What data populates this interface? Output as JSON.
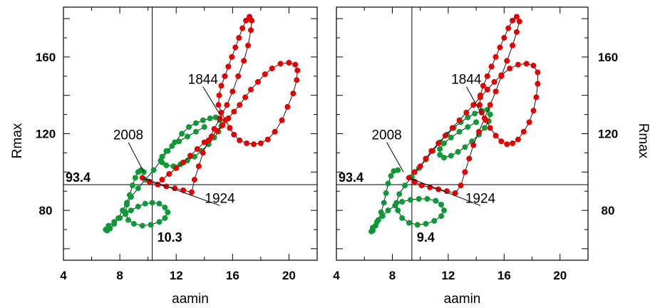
{
  "chart_data": [
    {
      "type": "scatter",
      "xlabel": "aamin",
      "ylabel": "Rmax",
      "xlim": [
        4,
        22
      ],
      "ylim": [
        54,
        186
      ],
      "xticks": [
        4,
        8,
        12,
        16,
        20
      ],
      "yticks": [
        80,
        120,
        160
      ],
      "yaxis_side": "left",
      "grid": false,
      "crosshair": {
        "x": 10.3,
        "y": 93.4
      },
      "labels": {
        "x_value": "10.3",
        "y_value": "93.4"
      },
      "annotations": [
        {
          "text": "1844",
          "at": [
            15.1,
            130
          ],
          "text_at": [
            13.9,
            146
          ]
        },
        {
          "text": "2008",
          "at": [
            9.7,
            100
          ],
          "text_at": [
            8.6,
            117
          ]
        },
        {
          "text": "1924",
          "at": [
            9.6,
            97
          ],
          "text_at": [
            15.1,
            84
          ]
        }
      ],
      "series": [
        {
          "color": "#0b9a35",
          "points": [
            [
              9.7,
              100
            ],
            [
              9.5,
              101
            ],
            [
              9.3,
              100
            ],
            [
              9.1,
              97
            ],
            [
              8.9,
              93
            ],
            [
              8.7,
              88
            ],
            [
              8.5,
              84
            ],
            [
              8.2,
              80
            ],
            [
              7.9,
              76
            ],
            [
              7.6,
              73
            ],
            [
              7.3,
              70.5
            ],
            [
              7.1,
              69.5
            ],
            [
              7.0,
              70
            ],
            [
              7.2,
              72
            ],
            [
              7.6,
              74
            ],
            [
              8.0,
              76
            ],
            [
              8.4,
              78
            ],
            [
              8.8,
              80
            ],
            [
              9.3,
              82
            ],
            [
              9.8,
              83.5
            ],
            [
              10.3,
              84
            ],
            [
              10.8,
              83.5
            ],
            [
              11.2,
              81.5
            ],
            [
              11.4,
              79
            ],
            [
              11.2,
              76
            ],
            [
              10.8,
              74
            ],
            [
              10.2,
              72.5
            ],
            [
              9.6,
              72
            ],
            [
              9.0,
              73
            ],
            [
              8.6,
              75
            ],
            [
              8.4,
              79
            ],
            [
              8.5,
              83
            ],
            [
              8.8,
              87
            ],
            [
              9.3,
              91.5
            ],
            [
              9.8,
              96
            ],
            [
              10.4,
              101
            ],
            [
              10.9,
              106
            ],
            [
              11.4,
              111
            ],
            [
              11.9,
              115.5
            ],
            [
              12.4,
              120
            ],
            [
              12.9,
              123.5
            ],
            [
              13.4,
              125.5
            ],
            [
              13.9,
              127
            ],
            [
              14.4,
              128
            ],
            [
              14.8,
              128.5
            ],
            [
              15.1,
              127
            ],
            [
              15.2,
              124
            ],
            [
              15.0,
              121
            ],
            [
              14.7,
              118
            ],
            [
              14.3,
              114.5
            ],
            [
              13.8,
              111
            ],
            [
              13.3,
              108
            ],
            [
              12.8,
              106
            ],
            [
              12.3,
              104
            ],
            [
              11.8,
              103
            ],
            [
              11.3,
              103.5
            ],
            [
              11.0,
              105
            ],
            [
              11.0,
              108
            ],
            [
              11.3,
              111
            ],
            [
              11.7,
              113.5
            ],
            [
              12.2,
              116
            ],
            [
              12.8,
              118.5
            ],
            [
              13.4,
              121
            ],
            [
              14.0,
              123.5
            ]
          ]
        },
        {
          "color": "#e50000",
          "points": [
            [
              9.6,
              97
            ],
            [
              10.1,
              95
            ],
            [
              10.7,
              93.5
            ],
            [
              11.3,
              92.5
            ],
            [
              11.9,
              91.5
            ],
            [
              12.5,
              90.5
            ],
            [
              13.1,
              89.5
            ],
            [
              13.3,
              96
            ],
            [
              13.6,
              103
            ],
            [
              13.9,
              110
            ],
            [
              14.3,
              116.5
            ],
            [
              14.7,
              122.5
            ],
            [
              15.1,
              128
            ],
            [
              15.6,
              135
            ],
            [
              16.0,
              142
            ],
            [
              16.4,
              150
            ],
            [
              16.8,
              158
            ],
            [
              17.1,
              166
            ],
            [
              17.3,
              174
            ],
            [
              17.35,
              179
            ],
            [
              17.2,
              181
            ],
            [
              16.95,
              179
            ],
            [
              16.7,
              175
            ],
            [
              16.45,
              170
            ],
            [
              16.2,
              165
            ],
            [
              15.95,
              160
            ],
            [
              15.7,
              155
            ],
            [
              15.45,
              150
            ],
            [
              15.2,
              145
            ],
            [
              15.05,
              140
            ],
            [
              15.0,
              135
            ],
            [
              15.2,
              131
            ],
            [
              15.5,
              127
            ],
            [
              15.8,
              123
            ],
            [
              16.1,
              119.5
            ],
            [
              16.5,
              116.5
            ],
            [
              17.0,
              115
            ],
            [
              17.5,
              114.5
            ],
            [
              18.0,
              115
            ],
            [
              18.5,
              117
            ],
            [
              19.0,
              121
            ],
            [
              19.5,
              127
            ],
            [
              19.9,
              134
            ],
            [
              20.3,
              141
            ],
            [
              20.55,
              148
            ],
            [
              20.6,
              153
            ],
            [
              20.45,
              156
            ],
            [
              20.0,
              157
            ],
            [
              19.4,
              156.5
            ],
            [
              18.8,
              154
            ],
            [
              18.3,
              151
            ],
            [
              17.8,
              147
            ],
            [
              17.3,
              143
            ],
            [
              16.9,
              139
            ],
            [
              16.5,
              135
            ],
            [
              16.1,
              131.5
            ],
            [
              15.7,
              128
            ],
            [
              15.3,
              124.5
            ],
            [
              14.9,
              121.5
            ],
            [
              14.5,
              118.5
            ],
            [
              14.0,
              115.5
            ],
            [
              13.5,
              112
            ],
            [
              13.0,
              108.5
            ],
            [
              12.5,
              105
            ],
            [
              12.0,
              102
            ],
            [
              11.5,
              99
            ],
            [
              11.0,
              96
            ]
          ]
        }
      ]
    },
    {
      "type": "scatter",
      "xlabel": "aamin",
      "ylabel": "Rmax",
      "xlim": [
        4,
        22
      ],
      "ylim": [
        54,
        186
      ],
      "xticks": [
        4,
        8,
        12,
        16,
        20
      ],
      "yticks": [
        80,
        120,
        160
      ],
      "yaxis_side": "right",
      "grid": false,
      "crosshair": {
        "x": 9.4,
        "y": 93.4
      },
      "labels": {
        "x_value": "9.4",
        "y_value": "93.4"
      },
      "annotations": [
        {
          "text": "1844",
          "at": [
            14.4,
            130
          ],
          "text_at": [
            13.3,
            146
          ]
        },
        {
          "text": "2008",
          "at": [
            8.8,
            100
          ],
          "text_at": [
            7.6,
            117
          ]
        },
        {
          "text": "1924",
          "at": [
            9.2,
            97
          ],
          "text_at": [
            14.3,
            84
          ]
        }
      ],
      "series": [
        {
          "color": "#0b9a35",
          "points": [
            [
              8.4,
              101
            ],
            [
              8.1,
              100.5
            ],
            [
              7.9,
              98
            ],
            [
              7.7,
              94
            ],
            [
              7.55,
              89
            ],
            [
              7.4,
              84
            ],
            [
              7.2,
              79
            ],
            [
              7.0,
              75
            ],
            [
              6.8,
              72
            ],
            [
              6.6,
              69.5
            ],
            [
              6.5,
              69
            ],
            [
              6.6,
              71
            ],
            [
              6.9,
              74
            ],
            [
              7.3,
              77
            ],
            [
              7.7,
              80
            ],
            [
              8.2,
              82.5
            ],
            [
              8.7,
              84.5
            ],
            [
              9.3,
              85.5
            ],
            [
              9.9,
              86
            ],
            [
              10.5,
              86
            ],
            [
              11.1,
              85
            ],
            [
              11.5,
              83
            ],
            [
              11.7,
              80
            ],
            [
              11.5,
              77
            ],
            [
              11.0,
              74.5
            ],
            [
              10.4,
              73
            ],
            [
              9.8,
              72.5
            ],
            [
              9.2,
              73.5
            ],
            [
              8.7,
              76
            ],
            [
              8.4,
              80
            ],
            [
              8.3,
              84
            ],
            [
              8.5,
              88.5
            ],
            [
              8.9,
              93
            ],
            [
              9.4,
              97.5
            ],
            [
              9.9,
              102
            ],
            [
              10.4,
              106.5
            ],
            [
              10.9,
              111
            ],
            [
              11.4,
              115.5
            ],
            [
              11.9,
              119.5
            ],
            [
              12.4,
              123
            ],
            [
              12.9,
              126
            ],
            [
              13.4,
              128.5
            ],
            [
              13.9,
              130.5
            ],
            [
              14.4,
              132
            ],
            [
              14.8,
              132.5
            ],
            [
              15.0,
              130
            ],
            [
              14.9,
              126.5
            ],
            [
              14.6,
              123
            ],
            [
              14.2,
              119.5
            ],
            [
              13.7,
              116
            ],
            [
              13.2,
              113
            ],
            [
              12.7,
              110.5
            ],
            [
              12.2,
              108.5
            ],
            [
              11.7,
              107.5
            ],
            [
              11.4,
              109
            ],
            [
              11.4,
              112
            ],
            [
              11.7,
              115
            ],
            [
              12.2,
              118
            ],
            [
              12.8,
              121
            ],
            [
              13.4,
              123.5
            ],
            [
              14.0,
              126
            ]
          ]
        },
        {
          "color": "#e50000",
          "points": [
            [
              9.2,
              97
            ],
            [
              9.6,
              95
            ],
            [
              10.1,
              93
            ],
            [
              10.7,
              92
            ],
            [
              11.3,
              91
            ],
            [
              11.9,
              90
            ],
            [
              12.5,
              89
            ],
            [
              12.9,
              93
            ],
            [
              13.2,
              100
            ],
            [
              13.5,
              107
            ],
            [
              13.8,
              114
            ],
            [
              14.2,
              121
            ],
            [
              14.6,
              128
            ],
            [
              15.0,
              135
            ],
            [
              15.4,
              142
            ],
            [
              15.8,
              150
            ],
            [
              16.2,
              158
            ],
            [
              16.6,
              166
            ],
            [
              16.9,
              173
            ],
            [
              17.1,
              178.5
            ],
            [
              16.9,
              181
            ],
            [
              16.6,
              179
            ],
            [
              16.3,
              175
            ],
            [
              16.0,
              170
            ],
            [
              15.7,
              165
            ],
            [
              15.4,
              160
            ],
            [
              15.1,
              155
            ],
            [
              14.8,
              150
            ],
            [
              14.5,
              145
            ],
            [
              14.3,
              140
            ],
            [
              14.25,
              135
            ],
            [
              14.4,
              131
            ],
            [
              14.7,
              127
            ],
            [
              15.0,
              123
            ],
            [
              15.4,
              119
            ],
            [
              15.8,
              116
            ],
            [
              16.2,
              114.5
            ],
            [
              16.6,
              115
            ],
            [
              17.0,
              117
            ],
            [
              17.4,
              121
            ],
            [
              17.8,
              126
            ],
            [
              18.1,
              132
            ],
            [
              18.3,
              139
            ],
            [
              18.4,
              146
            ],
            [
              18.4,
              152
            ],
            [
              18.1,
              155.5
            ],
            [
              17.6,
              156.5
            ],
            [
              17.0,
              156
            ],
            [
              16.4,
              154
            ],
            [
              15.8,
              150.5
            ],
            [
              15.3,
              147
            ],
            [
              14.8,
              143
            ],
            [
              14.3,
              139
            ],
            [
              13.8,
              135
            ],
            [
              13.3,
              131
            ],
            [
              12.8,
              127
            ],
            [
              12.3,
              123
            ],
            [
              11.8,
              119
            ],
            [
              11.3,
              115
            ],
            [
              10.8,
              111
            ],
            [
              10.4,
              107
            ],
            [
              10.0,
              103
            ],
            [
              9.6,
              100
            ]
          ]
        }
      ]
    }
  ]
}
